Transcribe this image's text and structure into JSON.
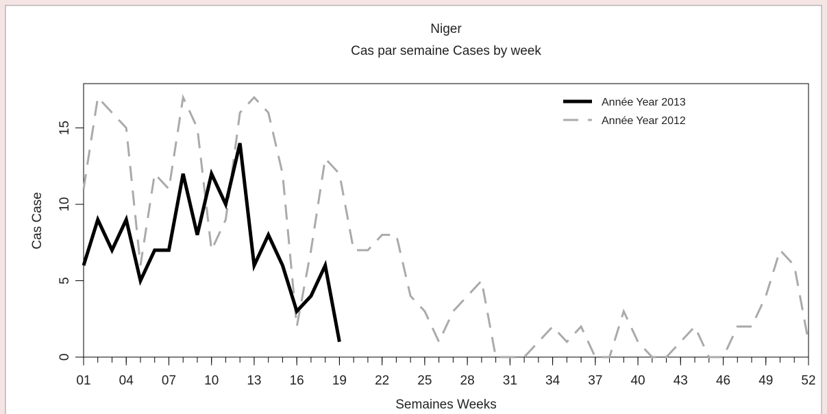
{
  "chart_data": {
    "type": "line",
    "title": "Niger",
    "subtitle": "Cas par semaine Cases by week",
    "x_label": "Semaines Weeks",
    "y_label": "Cas Case",
    "x": [
      1,
      2,
      3,
      4,
      5,
      6,
      7,
      8,
      9,
      10,
      11,
      12,
      13,
      14,
      15,
      16,
      17,
      18,
      19,
      20,
      21,
      22,
      23,
      24,
      25,
      26,
      27,
      28,
      29,
      30,
      31,
      32,
      33,
      34,
      35,
      36,
      37,
      38,
      39,
      40,
      41,
      42,
      43,
      44,
      45,
      46,
      47,
      48,
      49,
      50,
      51,
      52
    ],
    "series": [
      {
        "name": "Année Year 2013",
        "color": "#000000",
        "dashed": false,
        "values": [
          6,
          9,
          7,
          9,
          5,
          7,
          7,
          12,
          8,
          12,
          10,
          14,
          6,
          8,
          6,
          3,
          4,
          6,
          1,
          null,
          null,
          null,
          null,
          null,
          null,
          null,
          null,
          null,
          null,
          null,
          null,
          null,
          null,
          null,
          null,
          null,
          null,
          null,
          null,
          null,
          null,
          null,
          null,
          null,
          null,
          null,
          null,
          null,
          null,
          null,
          null,
          null
        ]
      },
      {
        "name": "Année Year 2012",
        "color": "#aaaaaa",
        "dashed": true,
        "values": [
          11,
          17,
          16,
          15,
          6,
          12,
          11,
          17,
          15,
          7,
          9,
          16,
          17,
          16,
          12,
          2,
          7,
          13,
          12,
          7,
          7,
          8,
          8,
          4,
          3,
          1,
          3,
          4,
          5,
          0,
          0,
          0,
          1,
          2,
          1,
          2,
          0,
          0,
          3,
          1,
          0,
          0,
          1,
          2,
          0,
          0,
          2,
          2,
          4,
          7,
          6,
          1
        ]
      }
    ],
    "xlim": [
      1,
      52
    ],
    "ylim": [
      0,
      17.9
    ],
    "xticks": [
      {
        "value": 1,
        "label": "01"
      },
      {
        "value": 4,
        "label": "04"
      },
      {
        "value": 7,
        "label": "07"
      },
      10,
      13,
      16,
      19,
      22,
      25,
      28,
      31,
      34,
      37,
      40,
      43,
      46,
      49,
      52
    ],
    "yticks": [
      0,
      5,
      10,
      15
    ],
    "legend": "topright"
  }
}
